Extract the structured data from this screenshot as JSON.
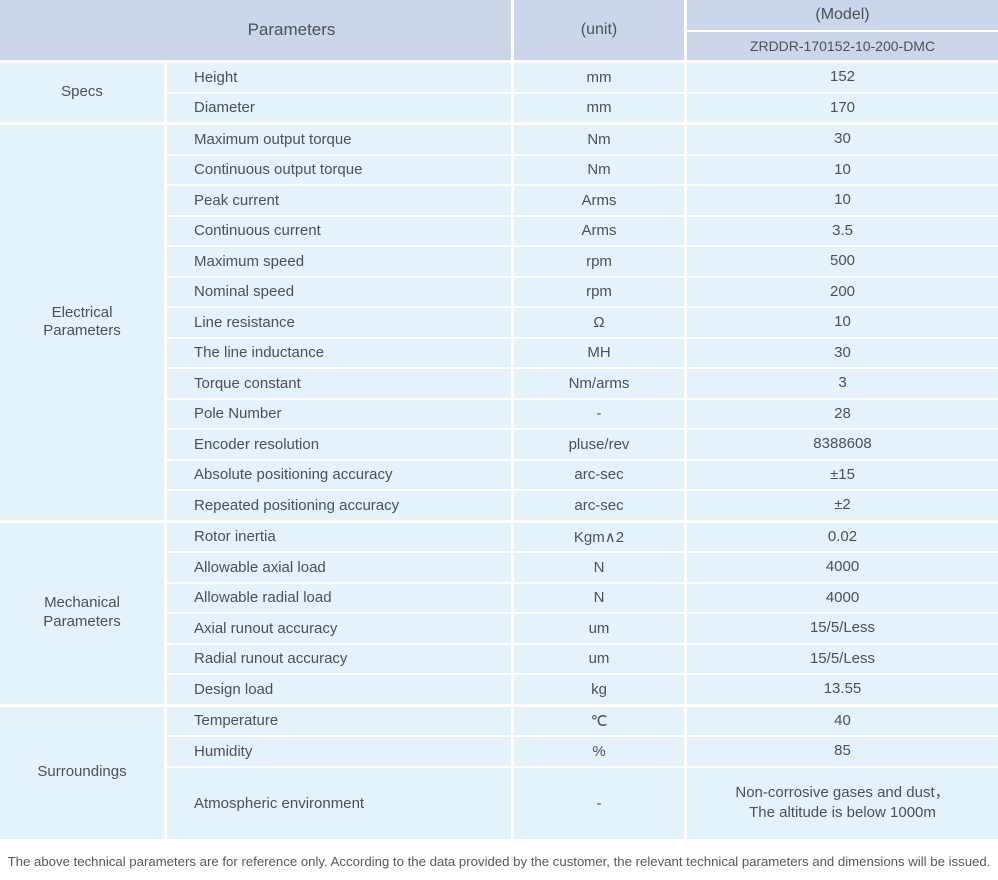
{
  "colors": {
    "header_bg": "#ccd6ea",
    "row_bg": "#e4f2fb",
    "text": "#4b5157",
    "separator": "#ffffff"
  },
  "header": {
    "parameters_label": "Parameters",
    "unit_label": "(unit)",
    "model_label": "(Model)",
    "model_value": "ZRDDR-170152-10-200-DMC"
  },
  "table": {
    "groups": [
      {
        "label": "Specs",
        "rows": [
          {
            "name": "Height",
            "unit": "mm",
            "value": "152"
          },
          {
            "name": "Diameter",
            "unit": "mm",
            "value": "170"
          }
        ]
      },
      {
        "label": "Electrical\nParameters",
        "rows": [
          {
            "name": "Maximum output torque",
            "unit": "Nm",
            "value": "30"
          },
          {
            "name": "Continuous output torque",
            "unit": "Nm",
            "value": "10"
          },
          {
            "name": "Peak current",
            "unit": "Arms",
            "value": "10"
          },
          {
            "name": "Continuous current",
            "unit": "Arms",
            "value": "3.5"
          },
          {
            "name": "Maximum speed",
            "unit": "rpm",
            "value": "500"
          },
          {
            "name": "Nominal speed",
            "unit": "rpm",
            "value": "200"
          },
          {
            "name": "Line resistance",
            "unit": "Ω",
            "value": "10"
          },
          {
            "name": "The line inductance",
            "unit": "MH",
            "value": "30"
          },
          {
            "name": "Torque constant",
            "unit": "Nm/arms",
            "value": "3"
          },
          {
            "name": "Pole Number",
            "unit": "-",
            "value": "28"
          },
          {
            "name": "Encoder resolution",
            "unit": "pluse/rev",
            "value": "8388608"
          },
          {
            "name": "Absolute positioning accuracy",
            "unit": "arc-sec",
            "value": "±15"
          },
          {
            "name": "Repeated positioning accuracy",
            "unit": "arc-sec",
            "value": "±2"
          }
        ]
      },
      {
        "label": "Mechanical\nParameters",
        "rows": [
          {
            "name": "Rotor inertia",
            "unit": "Kgm∧2",
            "value": "0.02"
          },
          {
            "name": "Allowable axial load",
            "unit": "N",
            "value": "4000"
          },
          {
            "name": "Allowable radial load",
            "unit": "N",
            "value": "4000"
          },
          {
            "name": "Axial runout accuracy",
            "unit": "um",
            "value": "15/5/Less"
          },
          {
            "name": "Radial runout accuracy",
            "unit": "um",
            "value": "15/5/Less"
          },
          {
            "name": "Design load",
            "unit": "kg",
            "value": "13.55"
          }
        ]
      },
      {
        "label": "Surroundings",
        "rows": [
          {
            "name": "Temperature",
            "unit": "℃",
            "value": "40"
          },
          {
            "name": "Humidity",
            "unit": "%",
            "value": "85"
          },
          {
            "name": "Atmospheric environment",
            "unit": "-",
            "value": "Non-corrosive gases and dust，\nThe altitude is below 1000m",
            "tall": true
          }
        ]
      }
    ]
  },
  "footer_note": "The above technical parameters are for reference only. According to the data provided by the customer, the relevant technical parameters and dimensions will be issued."
}
